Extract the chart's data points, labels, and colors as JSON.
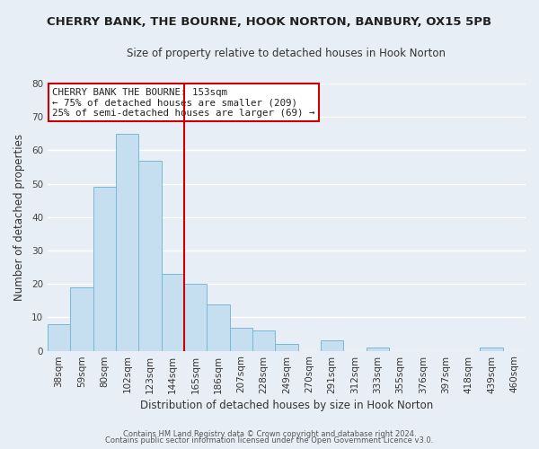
{
  "title": "CHERRY BANK, THE BOURNE, HOOK NORTON, BANBURY, OX15 5PB",
  "subtitle": "Size of property relative to detached houses in Hook Norton",
  "xlabel": "Distribution of detached houses by size in Hook Norton",
  "ylabel": "Number of detached properties",
  "bar_labels": [
    "38sqm",
    "59sqm",
    "80sqm",
    "102sqm",
    "123sqm",
    "144sqm",
    "165sqm",
    "186sqm",
    "207sqm",
    "228sqm",
    "249sqm",
    "270sqm",
    "291sqm",
    "312sqm",
    "333sqm",
    "355sqm",
    "376sqm",
    "397sqm",
    "418sqm",
    "439sqm",
    "460sqm"
  ],
  "bar_values": [
    8,
    19,
    49,
    65,
    57,
    23,
    20,
    14,
    7,
    6,
    2,
    0,
    3,
    0,
    1,
    0,
    0,
    0,
    0,
    1,
    0
  ],
  "bar_color": "#c6dff0",
  "bar_edge_color": "#7bb8d4",
  "ylim": [
    0,
    80
  ],
  "yticks": [
    0,
    10,
    20,
    30,
    40,
    50,
    60,
    70,
    80
  ],
  "vline_x": 5.5,
  "vline_color": "#cc0000",
  "annotation_title": "CHERRY BANK THE BOURNE: 153sqm",
  "annotation_line1": "← 75% of detached houses are smaller (209)",
  "annotation_line2": "25% of semi-detached houses are larger (69) →",
  "annotation_box_color": "#ffffff",
  "annotation_box_edge": "#cc0000",
  "footer1": "Contains HM Land Registry data © Crown copyright and database right 2024.",
  "footer2": "Contains public sector information licensed under the Open Government Licence v3.0.",
  "background_color": "#e8eef5",
  "plot_bg_color": "#e8eef5",
  "grid_color": "#ffffff",
  "title_fontsize": 9.5,
  "subtitle_fontsize": 8.5,
  "axis_label_fontsize": 8.5,
  "tick_fontsize": 7.5
}
